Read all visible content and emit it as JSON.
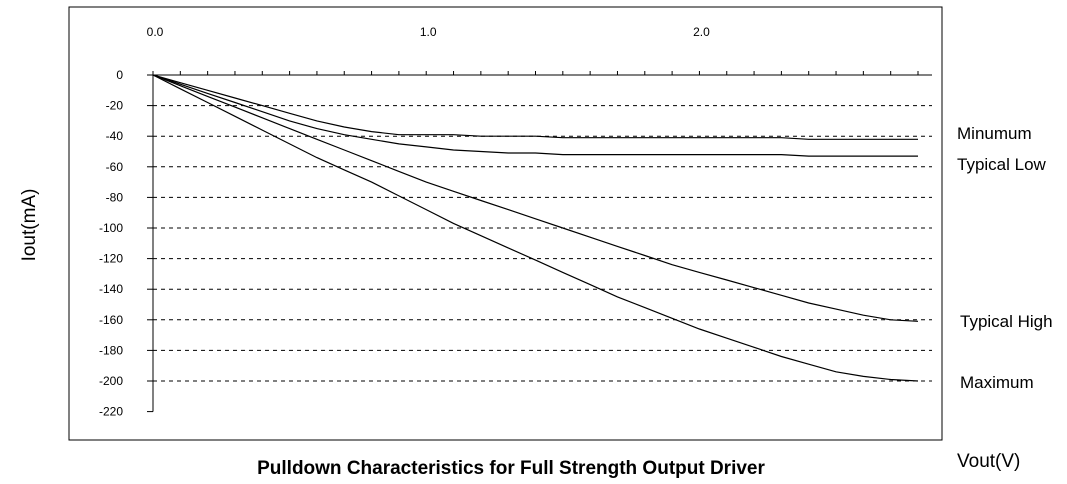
{
  "chart_data": {
    "type": "line",
    "title": "Pulldown Characteristics for Full Strength Output Driver",
    "xlabel": "Vout(V)",
    "ylabel": "Iout(mA)",
    "x_tick_labels": [
      "0.0",
      "1.0",
      "2.0"
    ],
    "x_ticks": [
      0,
      1.0,
      2.0
    ],
    "xlim": [
      0,
      2.8
    ],
    "y_ticks": [
      0,
      -20,
      -40,
      -60,
      -80,
      -100,
      -120,
      -140,
      -160,
      -180,
      -200,
      -220
    ],
    "ylim": [
      -220,
      0
    ],
    "grid": "horizontal-dashed",
    "x": [
      0,
      0.1,
      0.2,
      0.3,
      0.4,
      0.5,
      0.6,
      0.7,
      0.8,
      0.9,
      1.0,
      1.1,
      1.2,
      1.3,
      1.4,
      1.5,
      1.6,
      1.7,
      1.8,
      1.9,
      2.0,
      2.1,
      2.2,
      2.3,
      2.4,
      2.5,
      2.6,
      2.7,
      2.8
    ],
    "series": [
      {
        "name": "Minumum",
        "values": [
          0,
          -5,
          -10,
          -15,
          -20,
          -25,
          -30,
          -34,
          -37,
          -39,
          -39,
          -39,
          -40,
          -40,
          -40,
          -41,
          -41,
          -41,
          -41,
          -41,
          -41,
          -41,
          -41,
          -41,
          -42,
          -42,
          -42,
          -42,
          -42
        ]
      },
      {
        "name": "Typical Low",
        "values": [
          0,
          -6,
          -12,
          -18,
          -24,
          -30,
          -35,
          -39,
          -42,
          -45,
          -47,
          -49,
          -50,
          -51,
          -51,
          -52,
          -52,
          -52,
          -52,
          -52,
          -52,
          -52,
          -52,
          -52,
          -53,
          -53,
          -53,
          -53,
          -53
        ]
      },
      {
        "name": "Typical High",
        "values": [
          0,
          -7,
          -14,
          -21,
          -28,
          -35,
          -42,
          -49,
          -56,
          -63,
          -70,
          -76,
          -82,
          -88,
          -94,
          -100,
          -106,
          -112,
          -118,
          -124,
          -129,
          -134,
          -139,
          -144,
          -149,
          -153,
          -157,
          -160,
          -161
        ]
      },
      {
        "name": "Maximum",
        "values": [
          0,
          -9,
          -18,
          -27,
          -36,
          -45,
          -54,
          -62,
          -70,
          -79,
          -88,
          -97,
          -105,
          -113,
          -121,
          -129,
          -137,
          -145,
          -152,
          -159,
          -166,
          -172,
          -178,
          -184,
          -189,
          -194,
          -197,
          -199,
          -200
        ]
      }
    ]
  }
}
